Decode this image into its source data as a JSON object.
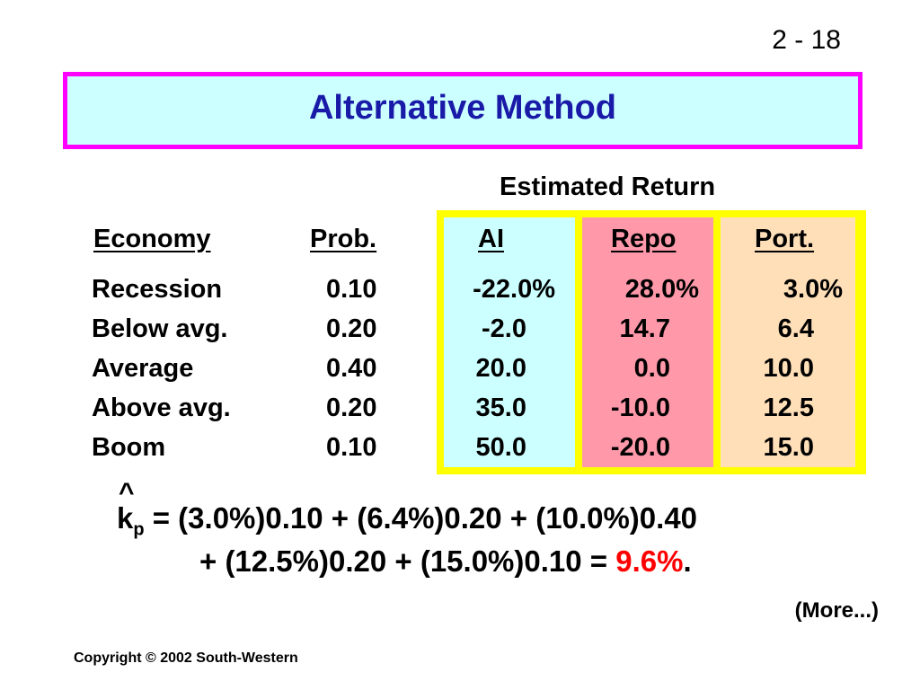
{
  "slide": {
    "number": "2 - 18"
  },
  "title": "Alternative Method",
  "table": {
    "group_header": "Estimated Return",
    "columns": [
      "Economy",
      "Prob.",
      "AI",
      "Repo",
      "Port."
    ],
    "rows": [
      [
        "Recession",
        "0.10",
        "-22.0%",
        "28.0%",
        "3.0%"
      ],
      [
        "Below avg.",
        "0.20",
        "-2.0",
        "14.7",
        "6.4"
      ],
      [
        "Average",
        "0.40",
        "20.0",
        "0.0",
        "10.0"
      ],
      [
        "Above avg.",
        "0.20",
        "35.0",
        "-10.0",
        "12.5"
      ],
      [
        "Boom",
        "0.10",
        "50.0",
        "-20.0",
        "15.0"
      ]
    ],
    "colors": {
      "ai": "#ccffff",
      "repo": "#ff99aa",
      "port": "#ffdfb8",
      "outline": "#ffff00"
    }
  },
  "formula": {
    "hat": "^",
    "symbol": "k",
    "subscript": "p",
    "line1": " = (3.0%)0.10 + (6.4%)0.20 + (10.0%)0.40",
    "line2_prefix": "+ (12.5%)0.20 + (15.0%)0.10 = ",
    "result": "9.6%",
    "suffix": "."
  },
  "more": "(More...)",
  "copyright": "Copyright © 2002 South-Western"
}
